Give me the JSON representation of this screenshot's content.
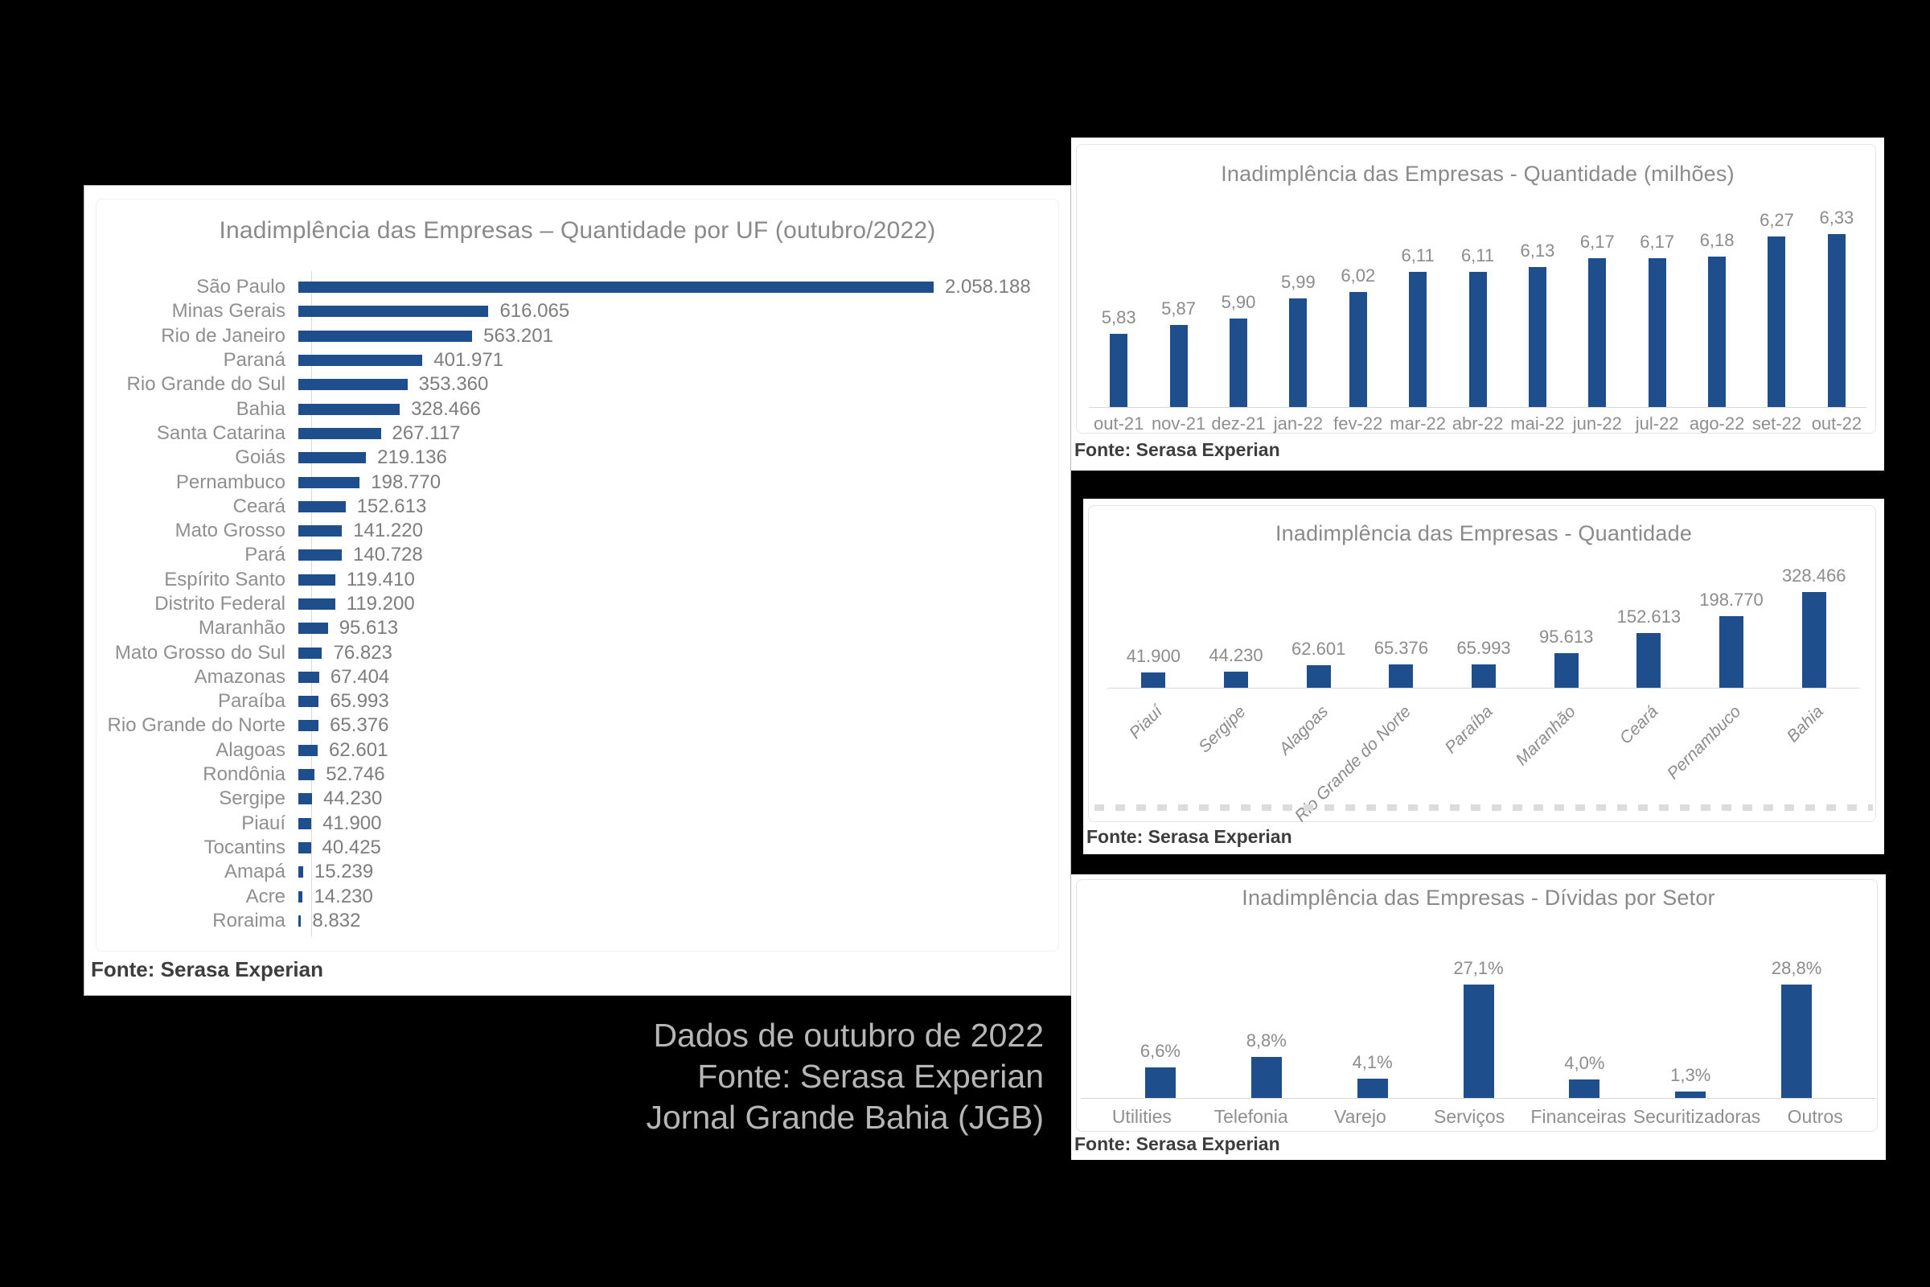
{
  "colors": {
    "bar": "#1f4e8c",
    "panel": "#ffffff",
    "background": "#000000",
    "label_gray": "#8f8f8f",
    "caption_gray": "#b6b6b6"
  },
  "overlay": {
    "line1": "Dados de outubro de 2022",
    "line2": "Fonte: Serasa Experian",
    "line3": "Jornal Grande Bahia (JGB)"
  },
  "chart_data": [
    {
      "type": "bar",
      "orientation": "horizontal",
      "title": "Inadimplência das Empresas – Quantidade por UF (outubro/2022)",
      "categories": [
        "São Paulo",
        "Minas Gerais",
        "Rio de Janeiro",
        "Paraná",
        "Rio Grande do Sul",
        "Bahia",
        "Santa Catarina",
        "Goiás",
        "Pernambuco",
        "Ceará",
        "Mato Grosso",
        "Pará",
        "Espírito Santo",
        "Distrito Federal",
        "Maranhão",
        "Mato Grosso do Sul",
        "Amazonas",
        "Paraíba",
        "Rio Grande do Norte",
        "Alagoas",
        "Rondônia",
        "Sergipe",
        "Piauí",
        "Tocantins",
        "Amapá",
        "Acre",
        "Roraima"
      ],
      "values": [
        2058188,
        616065,
        563201,
        401971,
        353360,
        328466,
        267117,
        219136,
        198770,
        152613,
        141220,
        140728,
        119410,
        119200,
        95613,
        76823,
        67404,
        65993,
        65376,
        62601,
        52746,
        44230,
        41900,
        40425,
        15239,
        14230,
        8832
      ],
      "value_labels": [
        "2.058.188",
        "616.065",
        "563.201",
        "401.971",
        "353.360",
        "328.466",
        "267.117",
        "219.136",
        "198.770",
        "152.613",
        "141.220",
        "140.728",
        "119.410",
        "119.200",
        "95.613",
        "76.823",
        "67.404",
        "65.993",
        "65.376",
        "62.601",
        "52.746",
        "44.230",
        "41.900",
        "40.425",
        "15.239",
        "14.230",
        "8.832"
      ],
      "xlim": [
        0,
        2100000
      ],
      "grid": false,
      "source": "Fonte: Serasa Experian"
    },
    {
      "type": "bar",
      "orientation": "vertical",
      "title": "Inadimplência das Empresas - Quantidade (milhões)",
      "categories": [
        "out-21",
        "nov-21",
        "dez-21",
        "jan-22",
        "fev-22",
        "mar-22",
        "abr-22",
        "mai-22",
        "jun-22",
        "jul-22",
        "ago-22",
        "set-22",
        "out-22"
      ],
      "values": [
        5.83,
        5.87,
        5.9,
        5.99,
        6.02,
        6.11,
        6.11,
        6.13,
        6.17,
        6.17,
        6.18,
        6.27,
        6.33
      ],
      "value_labels": [
        "5,83",
        "5,87",
        "5,90",
        "5,99",
        "6,02",
        "6,11",
        "6,11",
        "6,13",
        "6,17",
        "6,17",
        "6,18",
        "6,27",
        "6,33"
      ],
      "ylim": [
        5.5,
        6.4
      ],
      "grid": false,
      "source": "Fonte: Serasa Experian"
    },
    {
      "type": "bar",
      "orientation": "vertical",
      "title": "Inadimplência das Empresas - Quantidade",
      "categories": [
        "Piauí",
        "Sergipe",
        "Alagoas",
        "Rio Grande do Norte",
        "Paraíba",
        "Maranhão",
        "Ceará",
        "Pernambuco",
        "Bahia"
      ],
      "values": [
        41900,
        44230,
        62601,
        65376,
        65993,
        95613,
        152613,
        198770,
        328466
      ],
      "value_labels": [
        "41.900",
        "44.230",
        "62.601",
        "65.376",
        "65.993",
        "95.613",
        "152.613",
        "198.770",
        "328.466"
      ],
      "ylim": [
        0,
        340000
      ],
      "grid": false,
      "source": "Fonte: Serasa Experian"
    },
    {
      "type": "bar",
      "orientation": "vertical",
      "title": "Inadimplência das Empresas - Dívidas por Setor",
      "categories": [
        "Utilities",
        "Telefonia",
        "Varejo",
        "Serviços",
        "Financeiras",
        "Securitizadoras",
        "Outros"
      ],
      "values": [
        6.6,
        8.8,
        4.1,
        27.1,
        4.0,
        1.3,
        28.8
      ],
      "value_labels": [
        "6,6%",
        "8,8%",
        "4,1%",
        "27,1%",
        "4,0%",
        "1,3%",
        "28,8%"
      ],
      "ylim": [
        0,
        30
      ],
      "grid": false,
      "source": "Fonte: Serasa Experian"
    }
  ]
}
